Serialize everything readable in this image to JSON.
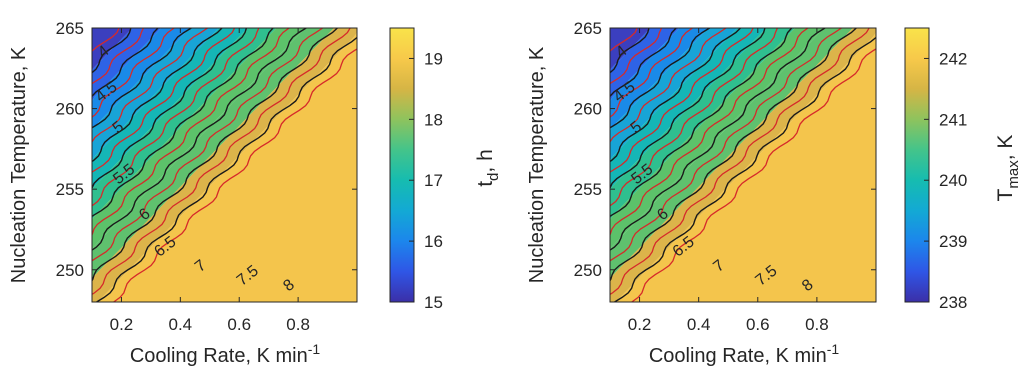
{
  "chart_data": [
    {
      "type": "contour",
      "xlabel": "Cooling Rate, K min",
      "xlabel_sup": "-1",
      "ylabel": "Nucleation Temperature, K",
      "xlim": [
        0.1,
        1.0
      ],
      "ylim": [
        248,
        265
      ],
      "xticks": [
        "0.2",
        "0.4",
        "0.6",
        "0.8"
      ],
      "xtick_values": [
        0.2,
        0.4,
        0.6,
        0.8
      ],
      "yticks": [
        "250",
        "255",
        "260",
        "265"
      ],
      "ytick_values": [
        250,
        255,
        260,
        265
      ],
      "colorbar": {
        "label": "t",
        "label_sub": "d",
        "label_suffix": ", h",
        "range": [
          15,
          19.5
        ],
        "ticks": [
          "15",
          "16",
          "17",
          "18",
          "19"
        ],
        "tick_values": [
          15,
          16,
          17,
          18,
          19
        ]
      },
      "z_min_corner": 3.5,
      "contour_levels": [
        4,
        4.5,
        5,
        5.5,
        6,
        6.5,
        7,
        7.5,
        8
      ],
      "contour_labels": [
        {
          "text": "4",
          "level": 4,
          "x": 0.14,
          "y": 263.5
        },
        {
          "text": "4.5",
          "level": 4.5,
          "x": 0.15,
          "y": 261.0
        },
        {
          "text": "5",
          "level": 5,
          "x": 0.19,
          "y": 258.8
        },
        {
          "text": "5.5",
          "level": 5.5,
          "x": 0.21,
          "y": 255.9
        },
        {
          "text": "6",
          "level": 6,
          "x": 0.28,
          "y": 253.4
        },
        {
          "text": "6.5",
          "level": 6.5,
          "x": 0.35,
          "y": 251.4
        },
        {
          "text": "7",
          "level": 7,
          "x": 0.47,
          "y": 250.2
        },
        {
          "text": "7.5",
          "level": 7.5,
          "x": 0.63,
          "y": 249.6
        },
        {
          "text": "8",
          "level": 8,
          "x": 0.77,
          "y": 249.0
        }
      ],
      "fill_colors": [
        "#3b3fbf",
        "#2e63e6",
        "#1a8ae8",
        "#18a4d6",
        "#15b6b6",
        "#2fbf8f",
        "#5cc26a",
        "#5fc16e",
        "#dcb44a",
        "#f4c54c"
      ]
    },
    {
      "type": "contour",
      "xlabel": "Cooling Rate, K min",
      "xlabel_sup": "-1",
      "ylabel": "Nucleation Temperature, K",
      "xlim": [
        0.1,
        1.0
      ],
      "ylim": [
        248,
        265
      ],
      "xticks": [
        "0.2",
        "0.4",
        "0.6",
        "0.8"
      ],
      "xtick_values": [
        0.2,
        0.4,
        0.6,
        0.8
      ],
      "yticks": [
        "250",
        "255",
        "260",
        "265"
      ],
      "ytick_values": [
        250,
        255,
        260,
        265
      ],
      "colorbar": {
        "label": "T",
        "label_sub": "max",
        "label_suffix": ", K",
        "range": [
          238,
          242.5
        ],
        "ticks": [
          "238",
          "239",
          "240",
          "241",
          "242"
        ],
        "tick_values": [
          238,
          239,
          240,
          241,
          242
        ]
      },
      "z_min_corner": 3.5,
      "contour_levels": [
        4,
        4.5,
        5,
        5.5,
        6,
        6.5,
        7,
        7.5,
        8
      ],
      "contour_labels": [
        {
          "text": "4",
          "level": 4,
          "x": 0.14,
          "y": 263.5
        },
        {
          "text": "4.5",
          "level": 4.5,
          "x": 0.15,
          "y": 261.0
        },
        {
          "text": "5",
          "level": 5,
          "x": 0.19,
          "y": 258.8
        },
        {
          "text": "5.5",
          "level": 5.5,
          "x": 0.21,
          "y": 255.9
        },
        {
          "text": "6",
          "level": 6,
          "x": 0.28,
          "y": 253.4
        },
        {
          "text": "6.5",
          "level": 6.5,
          "x": 0.35,
          "y": 251.4
        },
        {
          "text": "7",
          "level": 7,
          "x": 0.47,
          "y": 250.2
        },
        {
          "text": "7.5",
          "level": 7.5,
          "x": 0.63,
          "y": 249.6
        },
        {
          "text": "8",
          "level": 8,
          "x": 0.77,
          "y": 249.0
        }
      ],
      "fill_colors": [
        "#3b3fbf",
        "#2e63e6",
        "#1a8ae8",
        "#18a4d6",
        "#15b6b6",
        "#2fbf8f",
        "#5cc26a",
        "#5fc16e",
        "#dcb44a",
        "#f4c54c"
      ]
    }
  ]
}
